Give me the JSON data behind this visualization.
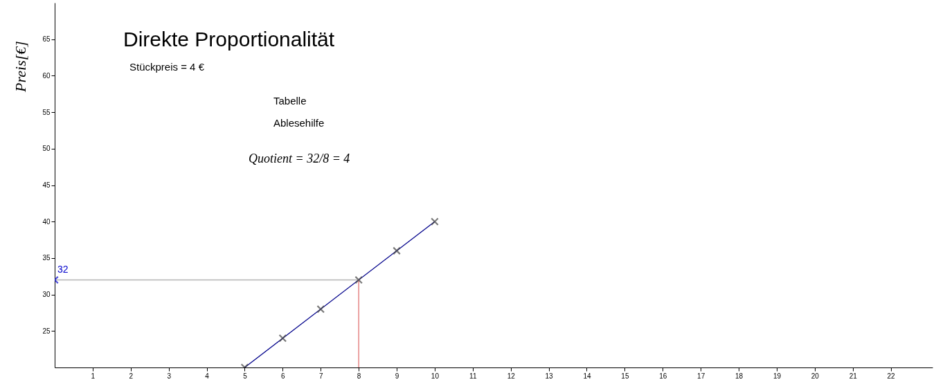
{
  "chart_data": {
    "type": "scatter",
    "title": "Direkte Proportionalität",
    "ylabel": "Preis[€]",
    "annotations": [
      "Stückpreis = 4 €",
      "Tabelle",
      "Ablesehilfe",
      "Quotient = 32/8 = 4",
      {
        "text": "32",
        "x": 0,
        "y": 32
      }
    ],
    "xlim": [
      0,
      23.1
    ],
    "ylim": [
      20,
      70
    ],
    "xticks": [
      1,
      2,
      3,
      4,
      5,
      6,
      7,
      8,
      9,
      10,
      11,
      12,
      13,
      14,
      15,
      16,
      17,
      18,
      19,
      20,
      21,
      22
    ],
    "yticks": [
      25,
      30,
      35,
      40,
      45,
      50,
      55,
      60,
      65
    ],
    "grid": false,
    "series": [
      {
        "type": "line",
        "color": "#00008b",
        "x": [
          5,
          10
        ],
        "values": [
          20,
          40
        ],
        "marker": "none"
      },
      {
        "type": "line",
        "color": "#b4b4b4",
        "x": [
          0,
          8
        ],
        "values": [
          32,
          32
        ],
        "marker": "none"
      },
      {
        "type": "line",
        "color": "#e07070",
        "x": [
          8,
          8
        ],
        "values": [
          20,
          32
        ],
        "marker": "none"
      },
      {
        "color": "#404040",
        "x": [
          5,
          6,
          7,
          8,
          9,
          10
        ],
        "values": [
          20,
          24,
          28,
          32,
          36,
          40
        ],
        "marker": "cross"
      },
      {
        "color": "#0000cc",
        "x": [
          0
        ],
        "values": [
          32
        ],
        "marker": "cross"
      }
    ]
  }
}
